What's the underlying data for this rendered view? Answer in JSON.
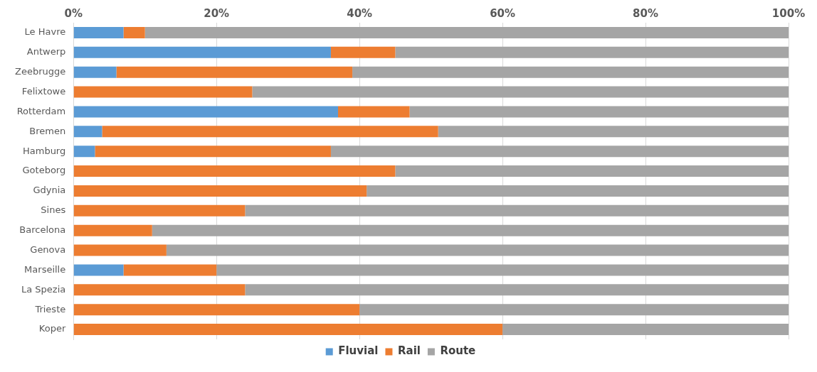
{
  "chart_data": {
    "type": "bar",
    "orientation": "horizontal",
    "stacked": true,
    "categories": [
      "Le Havre",
      "Antwerp",
      "Zeebrugge",
      "Felixtowe",
      "Rotterdam",
      "Bremen",
      "Hamburg",
      "Goteborg",
      "Gdynia",
      "Sines",
      "Barcelona",
      "Genova",
      "Marseille",
      "La Spezia",
      "Trieste",
      "Koper"
    ],
    "series": [
      {
        "name": "Fluvial",
        "color": "#5b9bd5",
        "values": [
          7,
          36,
          6,
          0,
          37,
          4,
          3,
          0,
          0,
          0,
          0,
          0,
          7,
          0,
          0,
          0
        ]
      },
      {
        "name": "Rail",
        "color": "#ed7d31",
        "values": [
          3,
          9,
          33,
          25,
          10,
          47,
          33,
          45,
          41,
          24,
          11,
          13,
          13,
          24,
          40,
          60
        ]
      },
      {
        "name": "Route",
        "color": "#a5a5a5",
        "values": [
          90,
          55,
          61,
          75,
          53,
          49,
          64,
          55,
          59,
          76,
          89,
          87,
          80,
          76,
          60,
          40
        ]
      }
    ],
    "xlim": [
      0,
      100
    ],
    "xticks": [
      {
        "value": 0,
        "label": "0%"
      },
      {
        "value": 20,
        "label": "20%"
      },
      {
        "value": 40,
        "label": "40%"
      },
      {
        "value": 60,
        "label": "60%"
      },
      {
        "value": 80,
        "label": "80%"
      },
      {
        "value": 100,
        "label": "100%"
      }
    ],
    "grid": "x",
    "legend": "bottom"
  }
}
